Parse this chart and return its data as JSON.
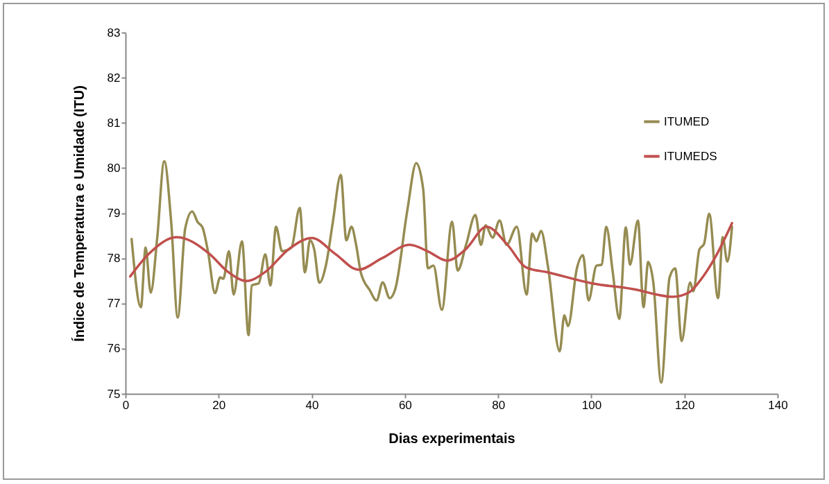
{
  "chart_data": {
    "type": "line",
    "xlabel": "Dias experimentais",
    "ylabel": "Índice de Temperatura e Umidade (ITU)",
    "xlim": [
      0,
      140
    ],
    "xticks": [
      0,
      20,
      40,
      60,
      80,
      100,
      120,
      140
    ],
    "ylim": [
      75,
      83
    ],
    "yticks": [
      75,
      76,
      77,
      78,
      79,
      80,
      81,
      82,
      83
    ],
    "grid": false,
    "legend": "top right",
    "marker": "none",
    "line_style": "solid",
    "series": [
      {
        "name": "ITUMED",
        "color": "#968c52",
        "x": [
          1.3,
          3.3,
          4.3,
          5.4,
          6.8,
          8.3,
          9.8,
          11.2,
          12.8,
          14.3,
          15.5,
          16.5,
          17.7,
          19.2,
          20.3,
          21,
          22.2,
          23.2,
          25,
          26.4,
          27.1,
          28.6,
          30,
          31.1,
          32.3,
          33.6,
          35.6,
          37.4,
          38.5,
          39.6,
          40.5,
          41.6,
          43,
          44.5,
          46.2,
          47.4,
          48.5,
          49.5,
          50.5,
          52.4,
          53.9,
          55.2,
          56.7,
          57.9,
          60.5,
          62.4,
          63.9,
          64.9,
          66.1,
          67.9,
          70.1,
          71.3,
          73.1,
          75.1,
          76.3,
          77.3,
          78.8,
          80.3,
          81.8,
          84,
          86.1,
          87.3,
          88.2,
          89.2,
          90.7,
          93.2,
          94.2,
          95,
          96.9,
          98.2,
          99.4,
          101.1,
          102.2,
          103.2,
          104.6,
          106,
          107.4,
          108.3,
          110,
          111.2,
          112.2,
          113.3,
          115,
          116.8,
          118,
          119.4,
          121.2,
          121.9,
          123.2,
          124.2,
          125.3,
          127.2,
          128.2,
          129.2,
          130.2
        ],
        "values": [
          78.43,
          76.92,
          78.24,
          77.24,
          78.46,
          80.15,
          78.8,
          76.69,
          78.66,
          79.04,
          78.8,
          78.69,
          78.15,
          77.23,
          77.58,
          77.55,
          78.16,
          77.2,
          78.38,
          76.3,
          77.4,
          77.45,
          78.09,
          77.4,
          78.7,
          78.16,
          78.24,
          79.12,
          77.69,
          78.4,
          78.2,
          77.46,
          77.84,
          78.8,
          79.85,
          78.4,
          78.7,
          78.3,
          77.69,
          77.3,
          77.07,
          77.47,
          77.12,
          77.32,
          79.07,
          80.11,
          79.53,
          77.78,
          77.84,
          76.86,
          78.81,
          77.73,
          78.3,
          78.96,
          78.3,
          78.73,
          78.46,
          78.84,
          78.3,
          78.7,
          77.2,
          78.55,
          78.38,
          78.61,
          77.81,
          75.94,
          76.74,
          76.5,
          77.78,
          78.07,
          77.07,
          77.84,
          77.86,
          78.7,
          77.69,
          76.66,
          78.69,
          77.86,
          78.84,
          76.92,
          77.92,
          77.47,
          75.25,
          77.58,
          77.78,
          76.17,
          77.47,
          77.27,
          78.2,
          78.32,
          78.99,
          77.12,
          78.47,
          77.93,
          78.7
        ]
      },
      {
        "name": "ITUMEDS",
        "color": "#c0504d",
        "x": [
          1,
          5,
          11,
          18,
          22,
          26,
          30,
          35,
          40,
          45,
          50,
          55,
          61,
          65,
          69,
          73,
          77.5,
          82,
          86,
          90.7,
          100,
          110,
          114,
          117.5,
          121,
          124,
          127,
          130.2
        ],
        "values": [
          77.6,
          78.1,
          78.47,
          78.1,
          77.7,
          77.5,
          77.7,
          78.2,
          78.45,
          78.1,
          77.75,
          78.0,
          78.3,
          78.15,
          77.95,
          78.2,
          78.7,
          78.3,
          77.8,
          77.69,
          77.45,
          77.3,
          77.2,
          77.15,
          77.25,
          77.6,
          78.1,
          78.78
        ]
      }
    ]
  }
}
